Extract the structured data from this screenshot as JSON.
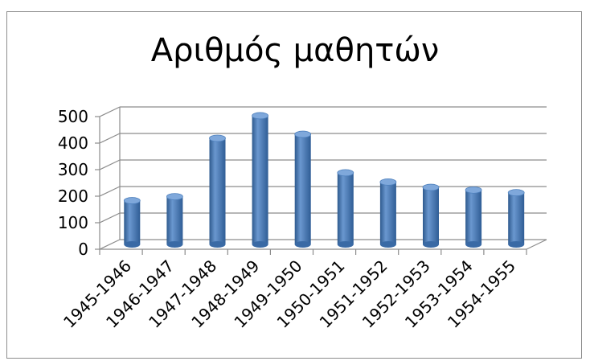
{
  "chart_data": {
    "type": "bar",
    "title": "Αριθμός μαθητών",
    "xlabel": "",
    "ylabel": "",
    "categories": [
      "1945-1946",
      "1946-1947",
      "1947-1948",
      "1948-1949",
      "1949-1950",
      "1950-1951",
      "1951-1952",
      "1952-1953",
      "1953-1954",
      "1954-1955"
    ],
    "values": [
      165,
      180,
      400,
      485,
      415,
      270,
      235,
      215,
      205,
      195
    ],
    "ylim": [
      0,
      500
    ],
    "yticks": [
      "0",
      "100",
      "200",
      "300",
      "400",
      "500"
    ],
    "grid": true,
    "legend": "none",
    "bar_color": "#4f81bd"
  }
}
